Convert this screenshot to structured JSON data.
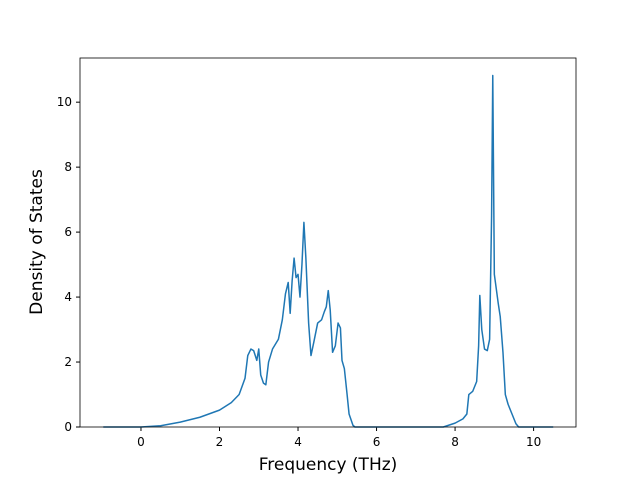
{
  "chart_data": {
    "type": "line",
    "x_label": "Frequency (THz)",
    "y_label": "Density of States",
    "x": [
      -0.96,
      0,
      0.5,
      1,
      1.5,
      2,
      2.3,
      2.5,
      2.65,
      2.72,
      2.8,
      2.87,
      2.95,
      3.0,
      3.05,
      3.12,
      3.18,
      3.25,
      3.35,
      3.5,
      3.6,
      3.68,
      3.75,
      3.8,
      3.85,
      3.9,
      3.95,
      4.0,
      4.05,
      4.1,
      4.15,
      4.2,
      4.27,
      4.33,
      4.4,
      4.5,
      4.6,
      4.67,
      4.72,
      4.77,
      4.82,
      4.88,
      4.95,
      5.02,
      5.08,
      5.12,
      5.18,
      5.25,
      5.3,
      5.4,
      5.45,
      7.7,
      8.0,
      8.2,
      8.3,
      8.35,
      8.45,
      8.55,
      8.6,
      8.63,
      8.68,
      8.75,
      8.82,
      8.88,
      8.93,
      8.96,
      9.0,
      9.1,
      9.15,
      9.22,
      9.28,
      9.35,
      9.45,
      9.55,
      9.62,
      10.5
    ],
    "series": [
      {
        "color": "#1f77b4",
        "values": [
          0,
          0,
          0.04,
          0.15,
          0.3,
          0.52,
          0.75,
          1.0,
          1.5,
          2.2,
          2.4,
          2.35,
          2.05,
          2.4,
          1.6,
          1.35,
          1.3,
          2.0,
          2.4,
          2.7,
          3.3,
          4.1,
          4.45,
          3.5,
          4.5,
          5.2,
          4.6,
          4.7,
          4.0,
          5.0,
          6.3,
          5.2,
          3.2,
          2.2,
          2.6,
          3.2,
          3.3,
          3.55,
          3.7,
          4.2,
          3.6,
          2.3,
          2.5,
          3.2,
          3.05,
          2.05,
          1.8,
          1.0,
          0.4,
          0.05,
          0,
          0,
          0.12,
          0.25,
          0.4,
          1.0,
          1.1,
          1.4,
          2.5,
          4.05,
          3.0,
          2.4,
          2.35,
          2.7,
          6.5,
          10.82,
          4.7,
          3.8,
          3.4,
          2.3,
          1.0,
          0.7,
          0.4,
          0.1,
          0,
          0
        ]
      }
    ],
    "xlim": [
      -1.553,
      11.08
    ],
    "ylim": [
      0,
      11.36
    ],
    "xticks": [
      0,
      2,
      4,
      6,
      8,
      10
    ],
    "yticks": [
      0,
      2,
      4,
      6,
      8,
      10
    ]
  }
}
